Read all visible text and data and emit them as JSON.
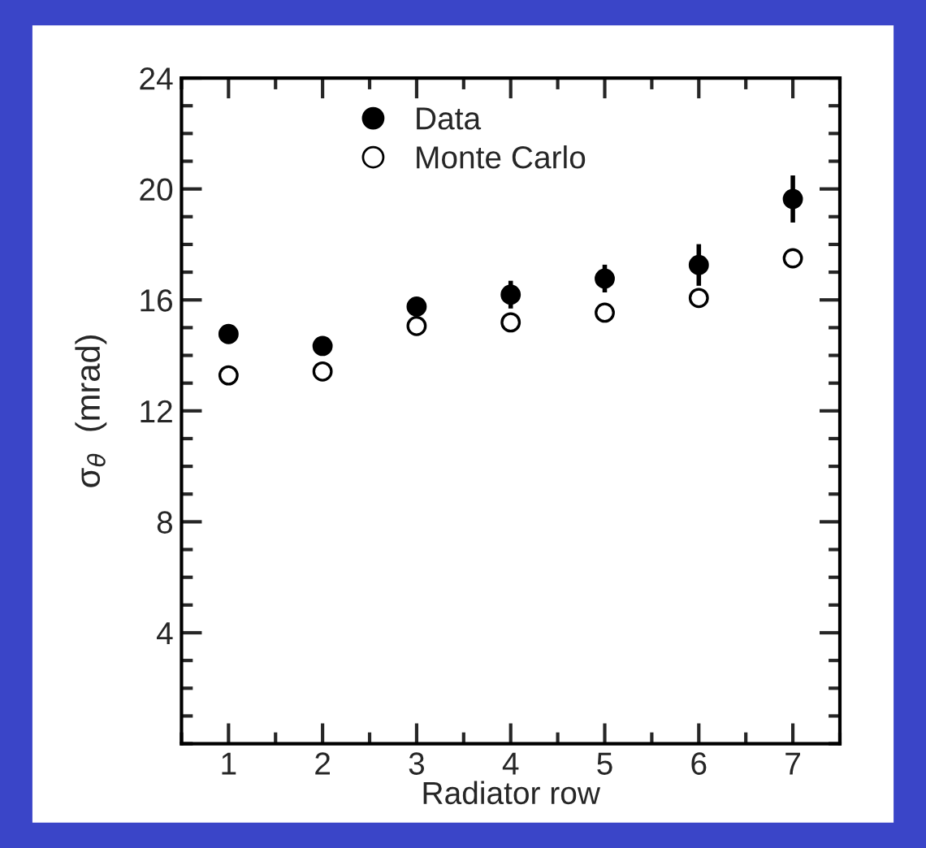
{
  "chart_data": {
    "type": "scatter",
    "xlabel": "Radiator row",
    "ylabel": "σ$_{θ}$  (mrad)",
    "x": [
      1,
      2,
      3,
      4,
      5,
      6,
      7
    ],
    "series": [
      {
        "name": "Data",
        "color": "#000000",
        "values": [
          14.77,
          14.34,
          15.76,
          16.19,
          16.77,
          17.26,
          19.64
        ],
        "errors": [
          0.2,
          0.15,
          0.25,
          0.5,
          0.5,
          0.75,
          0.85
        ]
      },
      {
        "name": "Monte Carlo",
        "color": "#ffffff",
        "values": [
          13.28,
          13.42,
          15.06,
          15.19,
          15.54,
          16.07,
          17.5
        ]
      }
    ],
    "xlim": [
      0.5,
      7.5
    ],
    "xticks": [
      1,
      2,
      3,
      4,
      5,
      6,
      7
    ],
    "ylim": [
      0,
      24
    ],
    "yticks": [
      4,
      8,
      12,
      16,
      20,
      24
    ],
    "marker": "circle",
    "legend": "top left",
    "grid": false
  }
}
